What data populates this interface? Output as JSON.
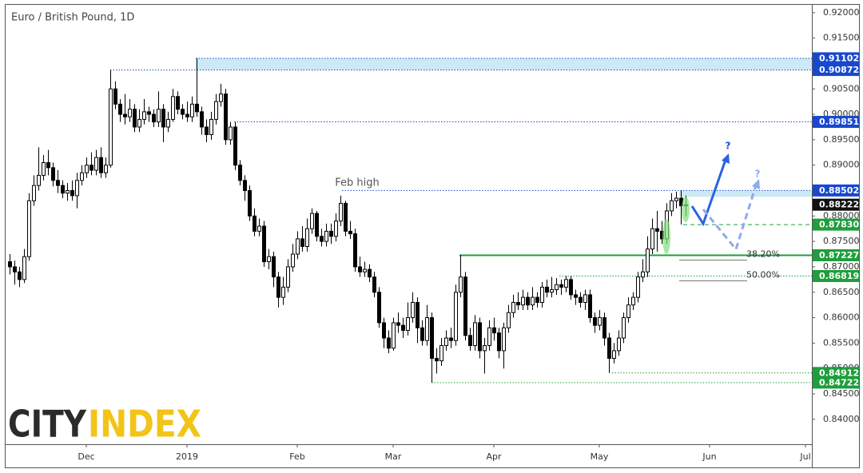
{
  "chart_data": {
    "type": "candlestick",
    "title": "Euro / British Pound, 1D",
    "logo": [
      "CITY",
      "INDEX"
    ],
    "annotations": [
      "Feb high",
      "?",
      "?"
    ],
    "categories": [
      null,
      null,
      null,
      null,
      null,
      null,
      null,
      null,
      null,
      null,
      null,
      null,
      null,
      null,
      null,
      null,
      "Dec",
      null,
      null,
      null,
      null,
      null,
      null,
      null,
      null,
      null,
      null,
      null,
      null,
      null,
      null,
      null,
      null,
      null,
      null,
      null,
      null,
      "2019",
      null,
      null,
      null,
      null,
      null,
      null,
      null,
      null,
      null,
      null,
      null,
      null,
      null,
      null,
      null,
      null,
      null,
      null,
      null,
      null,
      null,
      null,
      "Feb",
      null,
      null,
      null,
      null,
      null,
      null,
      null,
      null,
      null,
      null,
      null,
      null,
      null,
      null,
      null,
      null,
      null,
      null,
      null,
      "Mar",
      null,
      null,
      null,
      null,
      null,
      null,
      null,
      null,
      null,
      null,
      null,
      null,
      null,
      null,
      null,
      null,
      null,
      null,
      null,
      null,
      "Apr",
      null,
      null,
      null,
      null,
      null,
      null,
      null,
      null,
      null,
      null,
      null,
      null,
      null,
      null,
      null,
      null,
      null,
      null,
      null,
      null,
      null,
      "May",
      null,
      null,
      null,
      null,
      null,
      null,
      null,
      null,
      null,
      null,
      null,
      null,
      null,
      null,
      null,
      null,
      null,
      null,
      null,
      null,
      null,
      null,
      "Jun",
      null,
      null,
      null,
      null,
      null,
      null,
      null,
      null,
      null,
      null,
      null,
      null,
      null,
      null,
      null,
      null,
      null,
      null,
      null,
      "Jul"
    ],
    "open": [
      0.871,
      0.87,
      0.869,
      0.8675,
      0.872,
      0.883,
      0.886,
      0.888,
      0.8905,
      0.8895,
      0.887,
      0.886,
      0.8845,
      0.885,
      0.884,
      0.887,
      0.8885,
      0.89,
      0.889,
      0.8915,
      0.8885,
      0.89,
      0.905,
      0.902,
      0.9,
      0.8995,
      0.901,
      0.8975,
      0.899,
      0.9005,
      0.9,
      0.8985,
      0.901,
      0.8975,
      0.899,
      0.9035,
      0.901,
      0.9,
      0.8995,
      0.902,
      0.9005,
      0.8975,
      0.896,
      0.899,
      0.9025,
      0.904,
      0.895,
      0.8975,
      0.89,
      0.887,
      0.885,
      0.88,
      0.877,
      0.878,
      0.871,
      0.872,
      0.868,
      0.864,
      0.866,
      0.87,
      0.8725,
      0.8755,
      0.874,
      0.8775,
      0.8805,
      0.876,
      0.875,
      0.877,
      0.876,
      0.879,
      0.8825,
      0.877,
      0.8765,
      0.87,
      0.869,
      0.8695,
      0.868,
      0.865,
      0.859,
      0.856,
      0.854,
      0.859,
      0.8585,
      0.8575,
      0.86,
      0.863,
      0.858,
      0.8555,
      0.86,
      0.852,
      0.8515,
      0.8545,
      0.856,
      0.8555,
      0.865,
      0.868,
      0.8565,
      0.8545,
      0.859,
      0.8535,
      0.8545,
      0.858,
      0.857,
      0.8535,
      0.858,
      0.861,
      0.863,
      0.8625,
      0.864,
      0.8625,
      0.864,
      0.863,
      0.866,
      0.865,
      0.8655,
      0.8665,
      0.866,
      0.8675,
      0.8645,
      0.864,
      0.863,
      0.8645,
      0.86,
      0.8585,
      0.86,
      0.856,
      0.852,
      0.8535,
      0.856,
      0.86,
      0.8625,
      0.864,
      0.868,
      0.869,
      0.8735,
      0.8775,
      0.877,
      0.8755,
      0.881,
      0.883,
      0.8835,
      0.882,
      null,
      null,
      null,
      null,
      null,
      null,
      null,
      null,
      null,
      null,
      null,
      null,
      null,
      null,
      null,
      null,
      null,
      null,
      null,
      null,
      null,
      null,
      null,
      null,
      null
    ],
    "high": [
      0.8725,
      0.8712,
      0.87,
      0.8735,
      0.8845,
      0.888,
      0.8935,
      0.892,
      0.893,
      0.8905,
      0.889,
      0.887,
      0.8865,
      0.887,
      0.8885,
      0.89,
      0.8915,
      0.8925,
      0.893,
      0.8935,
      0.8915,
      0.9087,
      0.9065,
      0.903,
      0.904,
      0.903,
      0.902,
      0.901,
      0.903,
      0.9015,
      0.901,
      0.9045,
      0.902,
      0.9005,
      0.905,
      0.9045,
      0.902,
      0.9025,
      0.9035,
      0.911,
      0.9015,
      0.899,
      0.9005,
      0.904,
      0.906,
      0.905,
      0.8985,
      0.8985,
      0.891,
      0.888,
      0.886,
      0.8815,
      0.8795,
      0.879,
      0.8735,
      0.873,
      0.869,
      0.868,
      0.8715,
      0.8745,
      0.877,
      0.878,
      0.8795,
      0.8815,
      0.881,
      0.8775,
      0.8785,
      0.8785,
      0.8805,
      0.884,
      0.883,
      0.879,
      0.8775,
      0.872,
      0.871,
      0.8705,
      0.869,
      0.866,
      0.86,
      0.8575,
      0.86,
      0.861,
      0.86,
      0.863,
      0.865,
      0.864,
      0.8595,
      0.8625,
      0.861,
      0.854,
      0.856,
      0.8575,
      0.858,
      0.8665,
      0.8723,
      0.869,
      0.858,
      0.8605,
      0.86,
      0.856,
      0.8595,
      0.86,
      0.858,
      0.859,
      0.8625,
      0.8645,
      0.865,
      0.8655,
      0.865,
      0.866,
      0.865,
      0.867,
      0.8675,
      0.868,
      0.8678,
      0.8675,
      0.8682,
      0.8682,
      0.8655,
      0.865,
      0.8655,
      0.8655,
      0.861,
      0.8615,
      0.861,
      0.857,
      0.855,
      0.8575,
      0.861,
      0.864,
      0.865,
      0.869,
      0.8715,
      0.876,
      0.8795,
      0.881,
      0.879,
      0.8825,
      0.8845,
      0.8848,
      0.885,
      0.884,
      null,
      null,
      null,
      null,
      null,
      null,
      null,
      null,
      null,
      null,
      null,
      null,
      null,
      null,
      null,
      null,
      null,
      null,
      null,
      null,
      null,
      null,
      null,
      null,
      null
    ],
    "low": [
      0.8685,
      0.8665,
      0.866,
      0.8668,
      0.8712,
      0.882,
      0.885,
      0.887,
      0.888,
      0.8858,
      0.8845,
      0.8835,
      0.883,
      0.883,
      0.8815,
      0.886,
      0.8875,
      0.888,
      0.888,
      0.8875,
      0.8875,
      0.8895,
      0.901,
      0.8985,
      0.898,
      0.8985,
      0.8965,
      0.8965,
      0.898,
      0.8985,
      0.8975,
      0.8975,
      0.8945,
      0.8965,
      0.8985,
      0.9,
      0.899,
      0.8985,
      0.8985,
      0.8995,
      0.896,
      0.8945,
      0.895,
      0.898,
      0.9015,
      0.894,
      0.894,
      0.889,
      0.886,
      0.883,
      0.879,
      0.876,
      0.876,
      0.87,
      0.8695,
      0.866,
      0.862,
      0.8625,
      0.865,
      0.869,
      0.8715,
      0.873,
      0.873,
      0.8765,
      0.875,
      0.874,
      0.874,
      0.8745,
      0.875,
      0.878,
      0.876,
      0.8755,
      0.869,
      0.868,
      0.868,
      0.867,
      0.864,
      0.858,
      0.854,
      0.853,
      0.8535,
      0.857,
      0.856,
      0.8565,
      0.859,
      0.855,
      0.8545,
      0.8545,
      0.8472,
      0.849,
      0.8505,
      0.8535,
      0.854,
      0.8545,
      0.864,
      0.8555,
      0.8535,
      0.8535,
      0.852,
      0.849,
      0.8535,
      0.8555,
      0.852,
      0.85,
      0.857,
      0.86,
      0.8615,
      0.8615,
      0.8615,
      0.8615,
      0.862,
      0.862,
      0.864,
      0.864,
      0.8645,
      0.8645,
      0.865,
      0.8635,
      0.8625,
      0.862,
      0.8615,
      0.859,
      0.857,
      0.8575,
      0.8545,
      0.8491,
      0.851,
      0.8525,
      0.855,
      0.859,
      0.8615,
      0.863,
      0.867,
      0.868,
      0.8725,
      0.873,
      0.8745,
      0.8745,
      0.88,
      0.8815,
      0.8783,
      0.88,
      null,
      null,
      null,
      null,
      null,
      null,
      null,
      null,
      null,
      null,
      null,
      null,
      null,
      null,
      null,
      null,
      null,
      null,
      null,
      null,
      null,
      null,
      null,
      null,
      null
    ],
    "close": [
      0.87,
      0.869,
      0.8675,
      0.872,
      0.883,
      0.886,
      0.888,
      0.8905,
      0.8895,
      0.887,
      0.886,
      0.8845,
      0.885,
      0.884,
      0.887,
      0.8885,
      0.89,
      0.889,
      0.8915,
      0.8885,
      0.89,
      0.905,
      0.902,
      0.9,
      0.8995,
      0.901,
      0.8975,
      0.899,
      0.9005,
      0.9,
      0.8985,
      0.901,
      0.8975,
      0.899,
      0.9035,
      0.901,
      0.9,
      0.8995,
      0.902,
      0.9005,
      0.8975,
      0.896,
      0.899,
      0.9025,
      0.904,
      0.895,
      0.8975,
      0.89,
      0.887,
      0.885,
      0.88,
      0.877,
      0.878,
      0.871,
      0.872,
      0.868,
      0.864,
      0.866,
      0.87,
      0.8725,
      0.8755,
      0.874,
      0.8775,
      0.8805,
      0.876,
      0.875,
      0.877,
      0.876,
      0.879,
      0.8825,
      0.877,
      0.8765,
      0.87,
      0.869,
      0.8695,
      0.868,
      0.865,
      0.859,
      0.856,
      0.854,
      0.859,
      0.8585,
      0.8575,
      0.86,
      0.863,
      0.858,
      0.8555,
      0.86,
      0.852,
      0.8515,
      0.8545,
      0.856,
      0.8555,
      0.865,
      0.868,
      0.8565,
      0.8545,
      0.859,
      0.8535,
      0.8545,
      0.858,
      0.857,
      0.8535,
      0.858,
      0.861,
      0.863,
      0.8625,
      0.864,
      0.8625,
      0.864,
      0.863,
      0.866,
      0.865,
      0.8655,
      0.8665,
      0.866,
      0.8675,
      0.8645,
      0.864,
      0.863,
      0.8645,
      0.86,
      0.8585,
      0.86,
      0.856,
      0.852,
      0.8535,
      0.856,
      0.86,
      0.8625,
      0.864,
      0.868,
      0.869,
      0.8735,
      0.8775,
      0.877,
      0.8755,
      0.881,
      0.883,
      0.8835,
      0.882,
      0.8822,
      null,
      null,
      null,
      null,
      null,
      null,
      null,
      null,
      null,
      null,
      null,
      null,
      null,
      null,
      null,
      null,
      null,
      null,
      null,
      null,
      null,
      null,
      null,
      null,
      null
    ],
    "up_color": "#ffffff",
    "down_color": "#000000",
    "ylim": [
      0.8351,
      0.9217
    ],
    "yticks": [
      {
        "value": 0.84,
        "label": "0.84000"
      },
      {
        "value": 0.845,
        "label": "0.84500"
      },
      {
        "value": 0.85,
        "label": "0.85000"
      },
      {
        "value": 0.855,
        "label": "0.85500"
      },
      {
        "value": 0.86,
        "label": "0.86000"
      },
      {
        "value": 0.865,
        "label": "0.86500"
      },
      {
        "value": 0.87,
        "label": "0.87000"
      },
      {
        "value": 0.875,
        "label": "0.87500"
      },
      {
        "value": 0.88,
        "label": "0.88000"
      },
      {
        "value": 0.885,
        "label": "0.88500"
      },
      {
        "value": 0.89,
        "label": "0.89000"
      },
      {
        "value": 0.895,
        "label": "0.89500"
      },
      {
        "value": 0.9,
        "label": "0.90000"
      },
      {
        "value": 0.905,
        "label": "0.90500"
      },
      {
        "value": 0.91,
        "label": "0.91000"
      },
      {
        "value": 0.915,
        "label": "0.91500"
      },
      {
        "value": 0.92,
        "label": "0.92000"
      }
    ],
    "levels": [
      {
        "value": 0.91102,
        "color": "#1848cc",
        "style": "dotted"
      },
      {
        "value": 0.90872,
        "color": "#1848cc",
        "style": "dotted"
      },
      {
        "value": 0.89851,
        "color": "#1848cc",
        "style": "dotted"
      },
      {
        "value": 0.88502,
        "color": "#1848cc",
        "style": "dotted"
      },
      {
        "value": 0.88222,
        "color": "#111111",
        "style": "none"
      },
      {
        "value": {
          "value": 0.8783,
          "label": "0.87830"
        },
        "color": "#1f9e3c",
        "style": "dashed"
      },
      {
        "value": 0.87227,
        "color": "#1f9e3c",
        "style": "solid",
        "label": "38.20%"
      },
      {
        "value": 0.86819,
        "color": "#1f9e3c",
        "style": "dotted",
        "label": "50.00%"
      },
      {
        "value": 0.84912,
        "color": "#1f9e3c",
        "style": "dotted"
      },
      {
        "value": 0.84722,
        "color": "#1f9e3c",
        "style": "dotted"
      }
    ]
  }
}
